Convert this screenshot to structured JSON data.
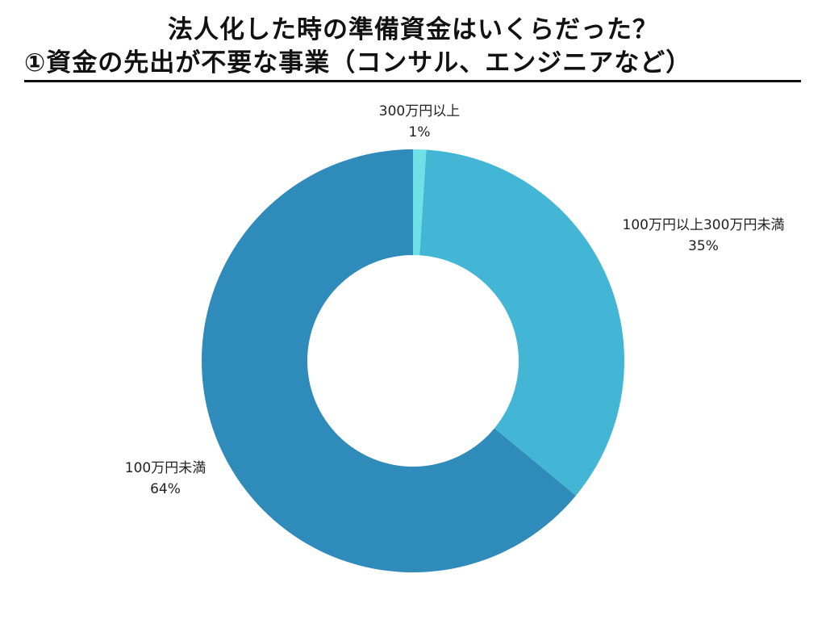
{
  "title": {
    "line1": "法人化した時の準備資金はいくらだった？",
    "line2": "①資金の先出が不要な事業（コンサル、エンジニアなど）"
  },
  "chart_data": {
    "type": "pie",
    "variant": "donut",
    "title": "法人化した時の準備資金はいくらだった？ ①資金の先出が不要な事業（コンサル、エンジニアなど）",
    "categories": [
      "300万円以上",
      "100万円以上300万円未満",
      "100万円未満"
    ],
    "values": [
      1,
      35,
      64
    ],
    "unit": "%",
    "colors": [
      "#6EE0E6",
      "#43B6D6",
      "#2E8BBA"
    ],
    "start_angle_deg": 0,
    "direction": "clockwise",
    "hole_ratio": 0.5,
    "labels": [
      {
        "name": "300万円以上",
        "value": "1%"
      },
      {
        "name": "100万円以上300万円未満",
        "value": "35%"
      },
      {
        "name": "100万円未満",
        "value": "64%"
      }
    ],
    "legend": "none (direct labels)"
  }
}
